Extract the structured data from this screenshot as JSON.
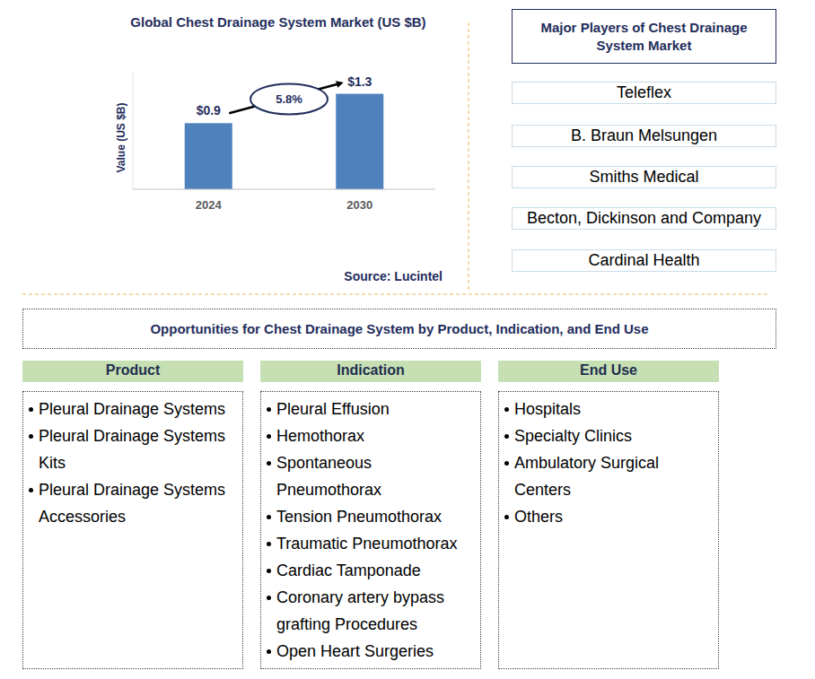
{
  "chart_data": {
    "type": "bar",
    "title": "Global Chest Drainage System Market (US $B)",
    "y_label": "Value (US $B)",
    "categories": [
      "2024",
      "2030"
    ],
    "values": [
      0.9,
      1.3
    ],
    "value_labels": [
      "$0.9",
      "$1.3"
    ],
    "color": "#4f81bd",
    "ylim": [
      0,
      1.6
    ],
    "yticks": [],
    "grid": false,
    "data_labels": true,
    "tick_labels": "x",
    "annotation": "5.8%",
    "source": "Source: Lucintel"
  },
  "players": {
    "title": "Major Players of Chest Drainage System Market",
    "items": [
      "Teleflex",
      "B. Braun Melsungen",
      "Smiths Medical",
      "Becton, Dickinson and Company",
      "Cardinal Health"
    ]
  },
  "opportunities": {
    "title": "Opportunities for Chest Drainage System by Product, Indication, and End Use",
    "columns": [
      {
        "header": "Product",
        "items": [
          "Pleural Drainage Systems",
          "Pleural Drainage Systems Kits",
          "Pleural Drainage Systems Accessories"
        ]
      },
      {
        "header": "Indication",
        "items": [
          "Pleural Effusion",
          "Hemothorax",
          "Spontaneous Pneumothorax",
          "Tension Pneumothorax",
          "Traumatic Pneumothorax",
          "Cardiac Tamponade",
          "Coronary artery bypass grafting Procedures",
          "Open Heart Surgeries"
        ]
      },
      {
        "header": "End Use",
        "items": [
          "Hospitals",
          "Specialty Clinics",
          "Ambulatory Surgical Centers",
          "Others"
        ]
      }
    ]
  }
}
